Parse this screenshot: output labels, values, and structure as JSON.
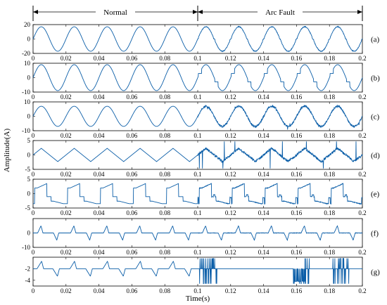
{
  "header": {
    "normal_label": "Normal",
    "arc_label": "Arc Fault",
    "boundary_x": 0.1
  },
  "chart_data": {
    "type": "line",
    "xlabel": "Time(s)",
    "ylabel": "Amplitude(A)",
    "xlim": [
      0,
      0.2
    ],
    "xticks": [
      "0",
      "0.02",
      "0.04",
      "0.06",
      "0.08",
      "0.1",
      "0.12",
      "0.14",
      "0.16",
      "0.18",
      "0.2"
    ],
    "line_color": "#0b5ea8",
    "fault_start": 0.1,
    "panels": [
      {
        "label": "(a)",
        "ylim": [
          -20,
          20
        ],
        "yticks": [
          "20",
          "0",
          "-20"
        ],
        "waveform": "sine",
        "amplitude": 17,
        "frequency_hz": 50,
        "fault_effect": "minor_distortion"
      },
      {
        "label": "(b)",
        "ylim": [
          -10,
          10
        ],
        "yticks": [
          "10",
          "0",
          "-10"
        ],
        "waveform": "sine",
        "amplitude": 9,
        "frequency_hz": 50,
        "fault_effect": "flat_shoulders"
      },
      {
        "label": "(c)",
        "ylim": [
          -10,
          10
        ],
        "yticks": [
          "10",
          "0",
          "-10"
        ],
        "waveform": "sine",
        "amplitude": 7,
        "frequency_hz": 50,
        "fault_effect": "noise"
      },
      {
        "label": "(d)",
        "ylim": [
          -5,
          5
        ],
        "yticks": [
          "5",
          "0",
          "-5"
        ],
        "waveform": "triangle",
        "amplitude": 2.3,
        "frequency_hz": 50,
        "fault_effect": "spikes"
      },
      {
        "label": "(e)",
        "ylim": [
          -5,
          5
        ],
        "yticks": [
          "5",
          "0",
          "-5"
        ],
        "waveform": "stepped_sawtooth",
        "amplitude": 3.5,
        "frequency_hz": 50,
        "fault_effect": "minor_distortion"
      },
      {
        "label": "(f)",
        "ylim": [
          -10,
          10
        ],
        "yticks": [
          "0",
          "-10"
        ],
        "waveform": "pulse",
        "amplitude": 5,
        "frequency_hz": 50,
        "fault_effect": "minor_distortion"
      },
      {
        "label": "(g)",
        "ylim": [
          -5,
          0
        ],
        "yticks": [
          "-2",
          "-4"
        ],
        "waveform": "stepped_pulse",
        "amplitude": 1.3,
        "frequency_hz": 50,
        "fault_effect": "bursts"
      }
    ]
  }
}
